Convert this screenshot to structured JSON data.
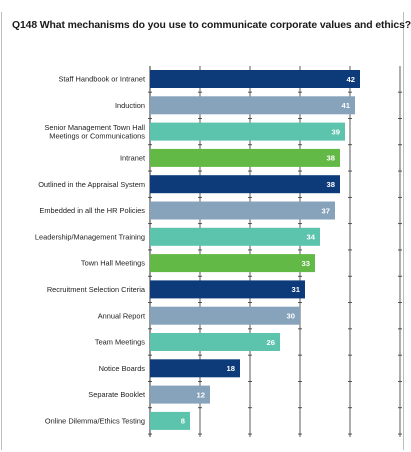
{
  "title": "Q148  What mechanisms do you use to communicate corporate values and ethics?",
  "colors": {
    "navy": "#0d3b7a",
    "slate": "#87a2bb",
    "teal": "#5cc3ad",
    "green": "#62b946",
    "grid": "#333333"
  },
  "chart_data": {
    "type": "bar",
    "orientation": "horizontal",
    "title": "Q148  What mechanisms do you use to communicate corporate values and ethics?",
    "xlim": [
      0,
      50
    ],
    "grid": true,
    "legend": "none",
    "categories": [
      "Staff Handbook or Intranet",
      "Induction",
      "Senior Management Town Hall\nMeetings or Communications",
      "Intranet",
      "Outlined in the Appraisal System",
      "Embedded in all the HR Policies",
      "Leadership/Management Training",
      "Town Hall Meetings",
      "Recruitment Selection Criteria",
      "Annual Report",
      "Team Meetings",
      "Notice Boards",
      "Separate Booklet",
      "Online Dilemma/Ethics Testing"
    ],
    "values": [
      42,
      41,
      39,
      38,
      38,
      37,
      34,
      33,
      31,
      30,
      26,
      18,
      12,
      8
    ],
    "bar_colors": [
      "navy",
      "slate",
      "teal",
      "green",
      "navy",
      "slate",
      "teal",
      "green",
      "navy",
      "slate",
      "teal",
      "navy",
      "slate",
      "teal"
    ]
  }
}
